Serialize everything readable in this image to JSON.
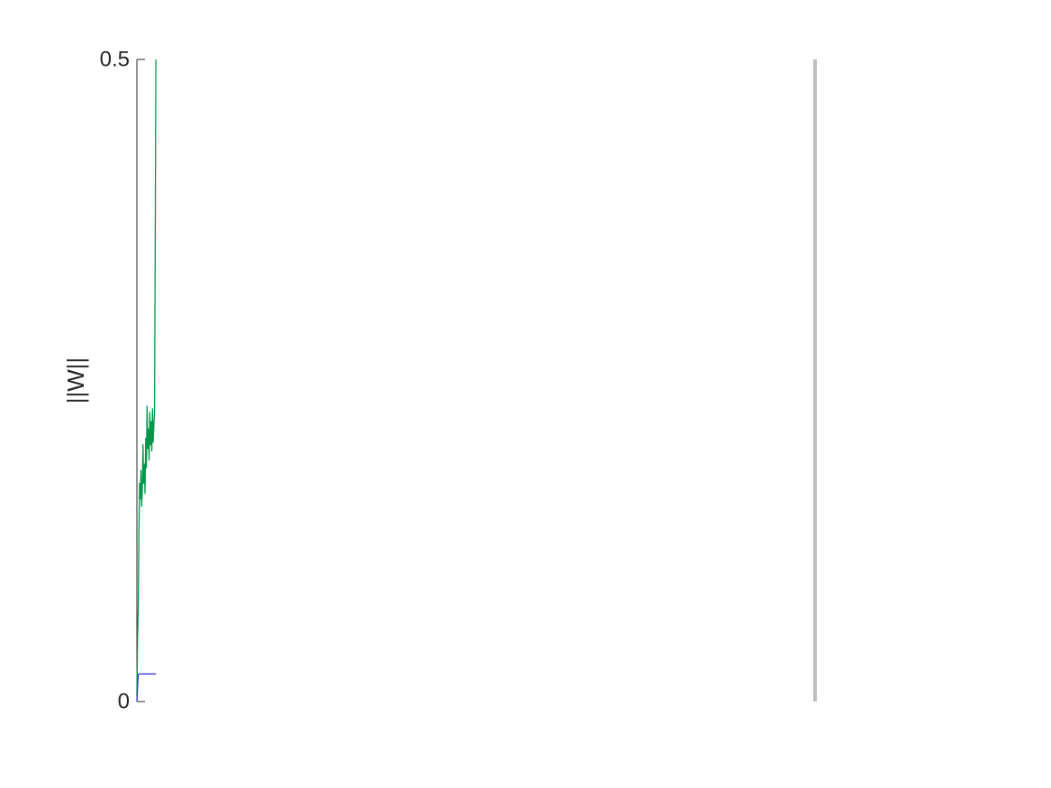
{
  "chart_data": {
    "type": "line",
    "title": "",
    "xlabel": "",
    "ylabel": "||W||",
    "ylim": [
      0,
      0.5
    ],
    "xlim": [
      0,
      1
    ],
    "grid": false,
    "legend": "none",
    "y_ticks": [
      {
        "value": 0,
        "label": "0"
      },
      {
        "value": 0.5,
        "label": "0.5"
      }
    ],
    "colors": {
      "green_series": "#00974a",
      "blue_series": "#2b2bd1",
      "marker_line": "#bdbdbd",
      "axis": "#262626"
    },
    "vertical_marker_x": 1.0,
    "series": [
      {
        "color": "#00974a",
        "x": [
          0.0,
          0.001,
          0.002,
          0.003,
          0.004,
          0.005,
          0.006,
          0.007,
          0.008,
          0.009,
          0.01,
          0.011,
          0.012,
          0.013,
          0.014,
          0.015,
          0.016,
          0.017,
          0.018,
          0.019,
          0.02,
          0.021,
          0.022,
          0.023,
          0.024,
          0.025,
          0.026,
          0.027,
          0.028
        ],
        "values": [
          0.005,
          0.05,
          0.072,
          0.13,
          0.17,
          0.158,
          0.18,
          0.152,
          0.165,
          0.2,
          0.17,
          0.185,
          0.162,
          0.205,
          0.182,
          0.23,
          0.197,
          0.212,
          0.188,
          0.225,
          0.2,
          0.218,
          0.195,
          0.228,
          0.202,
          0.215,
          0.225,
          0.35,
          0.5
        ]
      },
      {
        "color": "#2b2bd1",
        "x": [
          0.0,
          0.001,
          0.002,
          0.004,
          0.006,
          0.01,
          0.015,
          0.02,
          0.025,
          0.028
        ],
        "values": [
          0.0,
          0.012,
          0.021,
          0.0215,
          0.0215,
          0.0215,
          0.0215,
          0.0215,
          0.0215,
          0.0215
        ]
      }
    ]
  }
}
